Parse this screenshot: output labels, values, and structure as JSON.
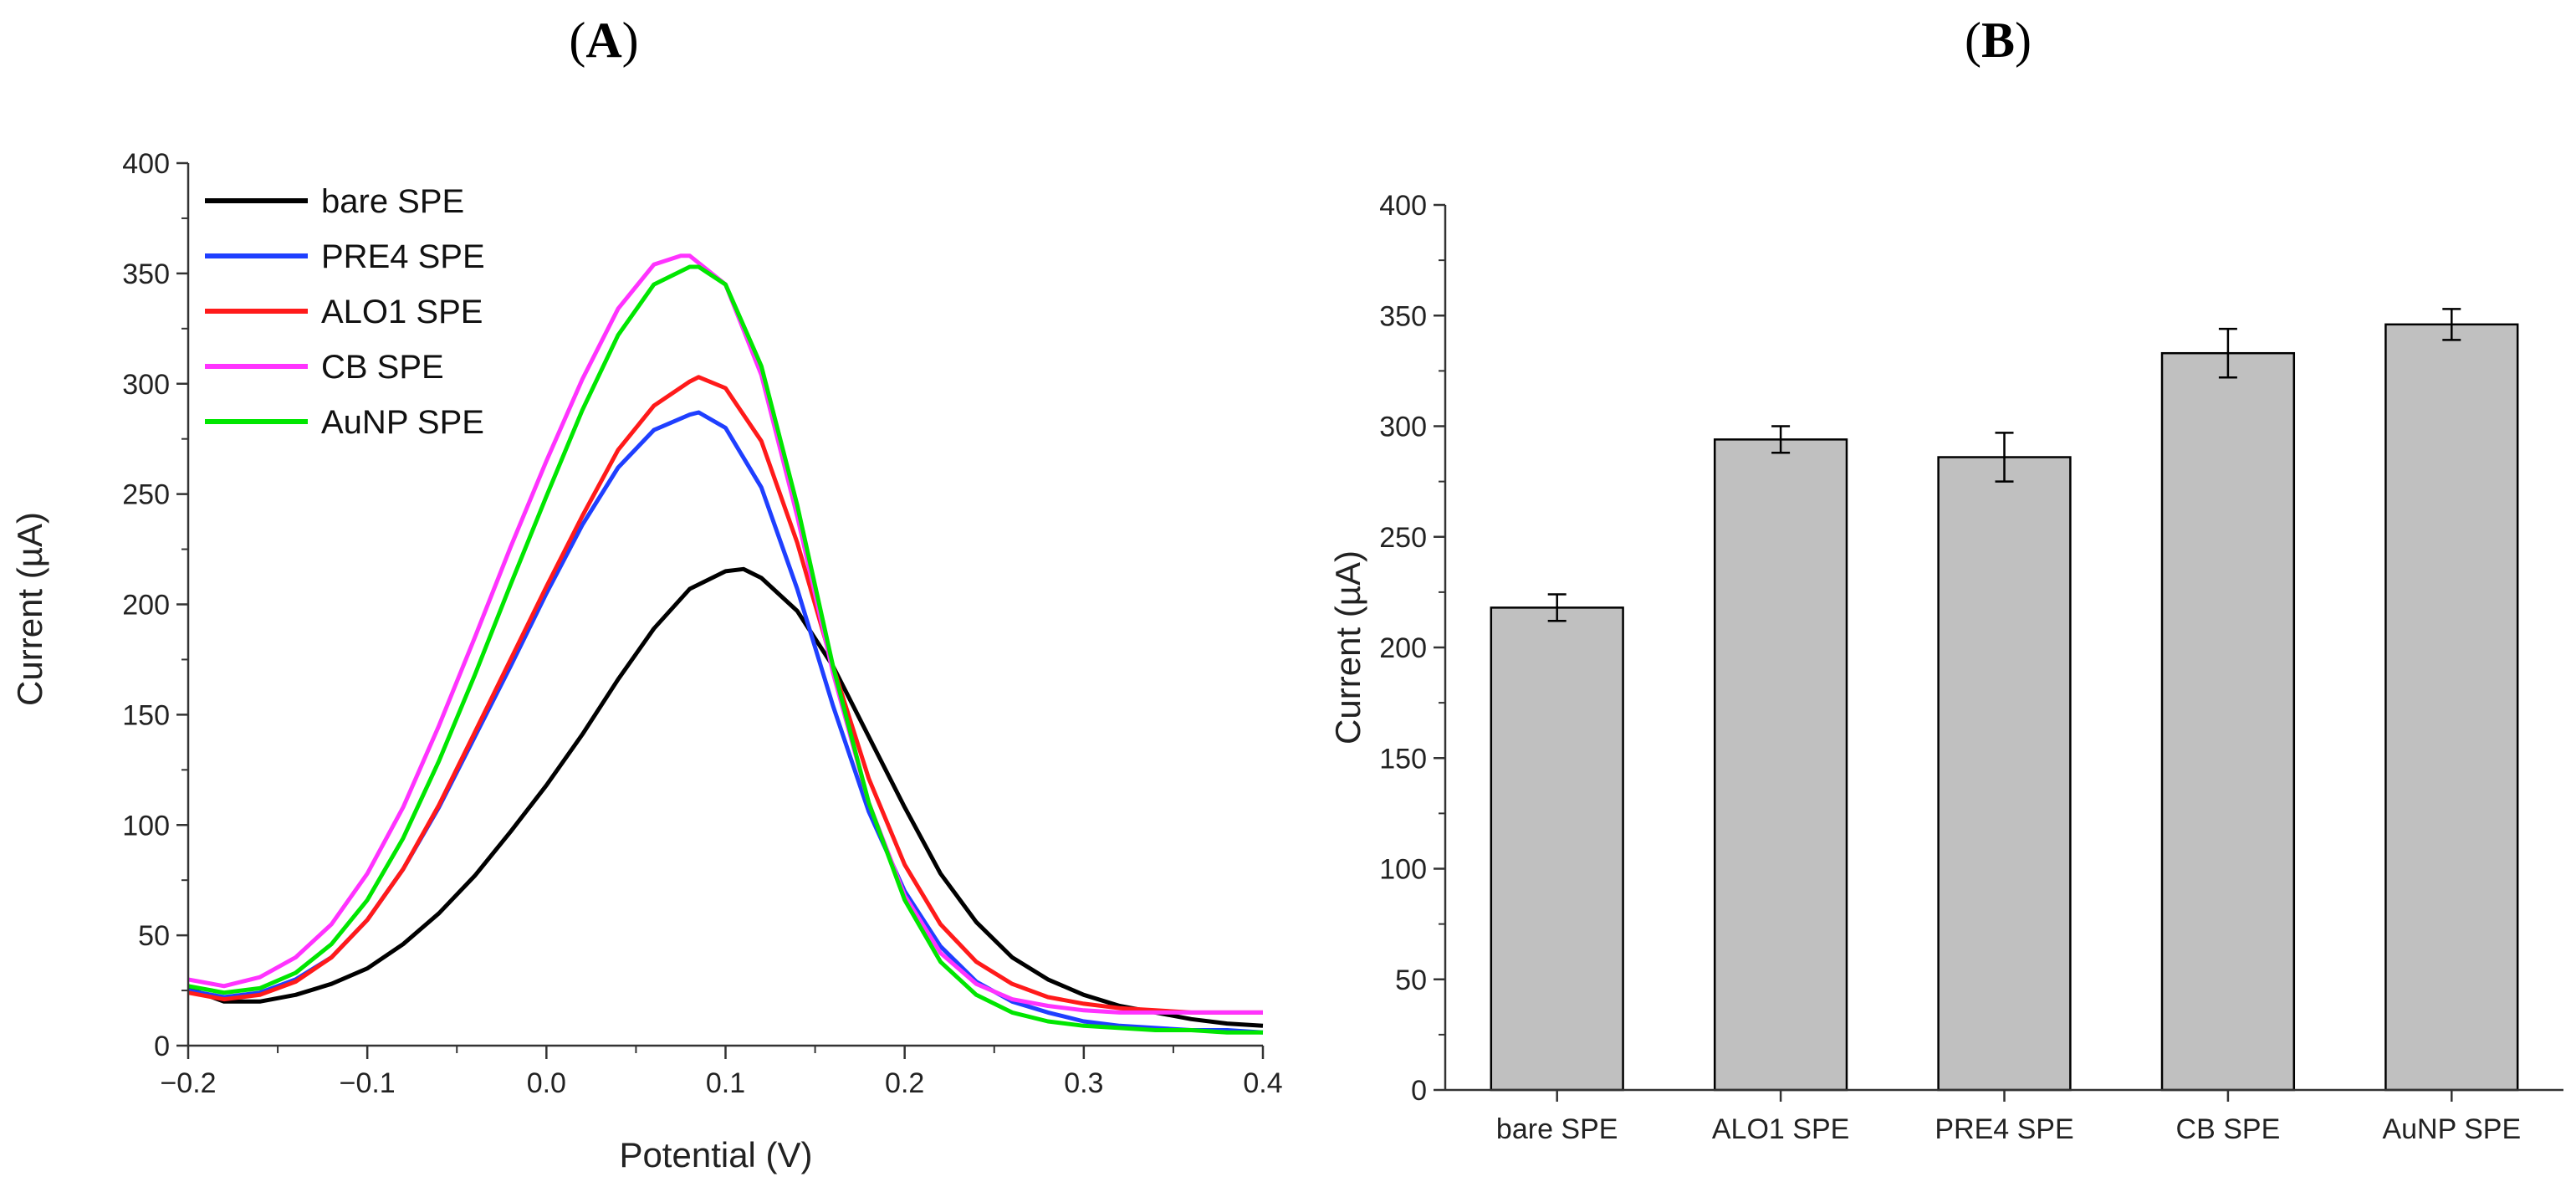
{
  "chart_data": [
    {
      "panel": "A",
      "type": "line",
      "xlabel": "Potential (V)",
      "ylabel": "Current (µA)",
      "xlim": [
        -0.2,
        0.4
      ],
      "ylim": [
        0,
        400
      ],
      "xticks": [
        "−0.2",
        "−0.1",
        "0.0",
        "0.1",
        "0.2",
        "0.3",
        "0.4"
      ],
      "yticks": [
        "0",
        "50",
        "100",
        "150",
        "200",
        "250",
        "300",
        "350",
        "400"
      ],
      "legend_position": "top-left",
      "series": [
        {
          "name": "bare SPE",
          "color": "#000000",
          "x": [
            -0.2,
            -0.18,
            -0.16,
            -0.14,
            -0.12,
            -0.1,
            -0.08,
            -0.06,
            -0.04,
            -0.02,
            0.0,
            0.02,
            0.04,
            0.06,
            0.08,
            0.1,
            0.11,
            0.12,
            0.14,
            0.16,
            0.18,
            0.2,
            0.22,
            0.24,
            0.26,
            0.28,
            0.3,
            0.32,
            0.34,
            0.36,
            0.38,
            0.4
          ],
          "y": [
            26,
            20,
            20,
            23,
            28,
            35,
            46,
            60,
            77,
            97,
            118,
            141,
            166,
            189,
            207,
            215,
            216,
            212,
            197,
            172,
            140,
            108,
            78,
            56,
            40,
            30,
            23,
            18,
            15,
            12,
            10,
            9
          ]
        },
        {
          "name": "PRE4 SPE",
          "color": "#1f3fff",
          "x": [
            -0.2,
            -0.18,
            -0.16,
            -0.14,
            -0.12,
            -0.1,
            -0.08,
            -0.06,
            -0.04,
            -0.02,
            0.0,
            0.02,
            0.04,
            0.06,
            0.08,
            0.085,
            0.1,
            0.12,
            0.14,
            0.16,
            0.18,
            0.2,
            0.22,
            0.24,
            0.26,
            0.28,
            0.3,
            0.32,
            0.34,
            0.36,
            0.38,
            0.4
          ],
          "y": [
            25,
            22,
            24,
            30,
            40,
            57,
            80,
            108,
            140,
            172,
            205,
            236,
            262,
            279,
            286,
            287,
            280,
            253,
            207,
            154,
            106,
            70,
            45,
            29,
            20,
            15,
            11,
            9,
            8,
            7,
            7,
            6
          ]
        },
        {
          "name": "ALO1 SPE",
          "color": "#ff1a1a",
          "x": [
            -0.2,
            -0.18,
            -0.16,
            -0.14,
            -0.12,
            -0.1,
            -0.08,
            -0.06,
            -0.04,
            -0.02,
            0.0,
            0.02,
            0.04,
            0.06,
            0.08,
            0.085,
            0.1,
            0.12,
            0.14,
            0.16,
            0.18,
            0.2,
            0.22,
            0.24,
            0.26,
            0.28,
            0.3,
            0.32,
            0.34,
            0.36,
            0.38,
            0.4
          ],
          "y": [
            24,
            21,
            23,
            29,
            40,
            57,
            80,
            109,
            142,
            175,
            208,
            240,
            270,
            290,
            301,
            303,
            298,
            274,
            228,
            172,
            121,
            82,
            55,
            38,
            28,
            22,
            19,
            17,
            16,
            15,
            15,
            15
          ]
        },
        {
          "name": "CB SPE",
          "color": "#ff33ff",
          "x": [
            -0.2,
            -0.18,
            -0.16,
            -0.14,
            -0.12,
            -0.1,
            -0.08,
            -0.06,
            -0.04,
            -0.02,
            0.0,
            0.02,
            0.04,
            0.06,
            0.075,
            0.08,
            0.1,
            0.12,
            0.14,
            0.16,
            0.18,
            0.2,
            0.22,
            0.24,
            0.26,
            0.28,
            0.3,
            0.32,
            0.34,
            0.36,
            0.38,
            0.4
          ],
          "y": [
            30,
            27,
            31,
            40,
            55,
            78,
            108,
            145,
            185,
            226,
            265,
            302,
            334,
            354,
            358,
            358,
            345,
            304,
            240,
            169,
            110,
            68,
            42,
            28,
            21,
            18,
            16,
            15,
            15,
            15,
            15,
            15
          ]
        },
        {
          "name": "AuNP SPE",
          "color": "#00e600",
          "x": [
            -0.2,
            -0.18,
            -0.16,
            -0.14,
            -0.12,
            -0.1,
            -0.08,
            -0.06,
            -0.04,
            -0.02,
            0.0,
            0.02,
            0.04,
            0.06,
            0.08,
            0.085,
            0.1,
            0.12,
            0.14,
            0.16,
            0.18,
            0.2,
            0.22,
            0.24,
            0.26,
            0.28,
            0.3,
            0.32,
            0.34,
            0.36,
            0.38,
            0.4
          ],
          "y": [
            27,
            24,
            26,
            33,
            46,
            66,
            94,
            129,
            168,
            209,
            249,
            288,
            322,
            345,
            353,
            353,
            345,
            308,
            245,
            172,
            110,
            66,
            38,
            23,
            15,
            11,
            9,
            8,
            7,
            7,
            6,
            6
          ]
        }
      ]
    },
    {
      "panel": "B",
      "type": "bar",
      "xlabel": "",
      "ylabel": "Current (µA)",
      "ylim": [
        0,
        400
      ],
      "yticks": [
        "0",
        "50",
        "100",
        "150",
        "200",
        "250",
        "300",
        "350",
        "400"
      ],
      "bar_color": "#c0c0c0",
      "categories": [
        "bare SPE",
        "ALO1 SPE",
        "PRE4 SPE",
        "CB SPE",
        "AuNP SPE"
      ],
      "values": [
        218,
        294,
        286,
        333,
        346
      ],
      "errors": [
        6,
        6,
        11,
        11,
        7
      ]
    }
  ],
  "panels": {
    "A": {
      "label": "A"
    },
    "B": {
      "label": "B"
    }
  }
}
